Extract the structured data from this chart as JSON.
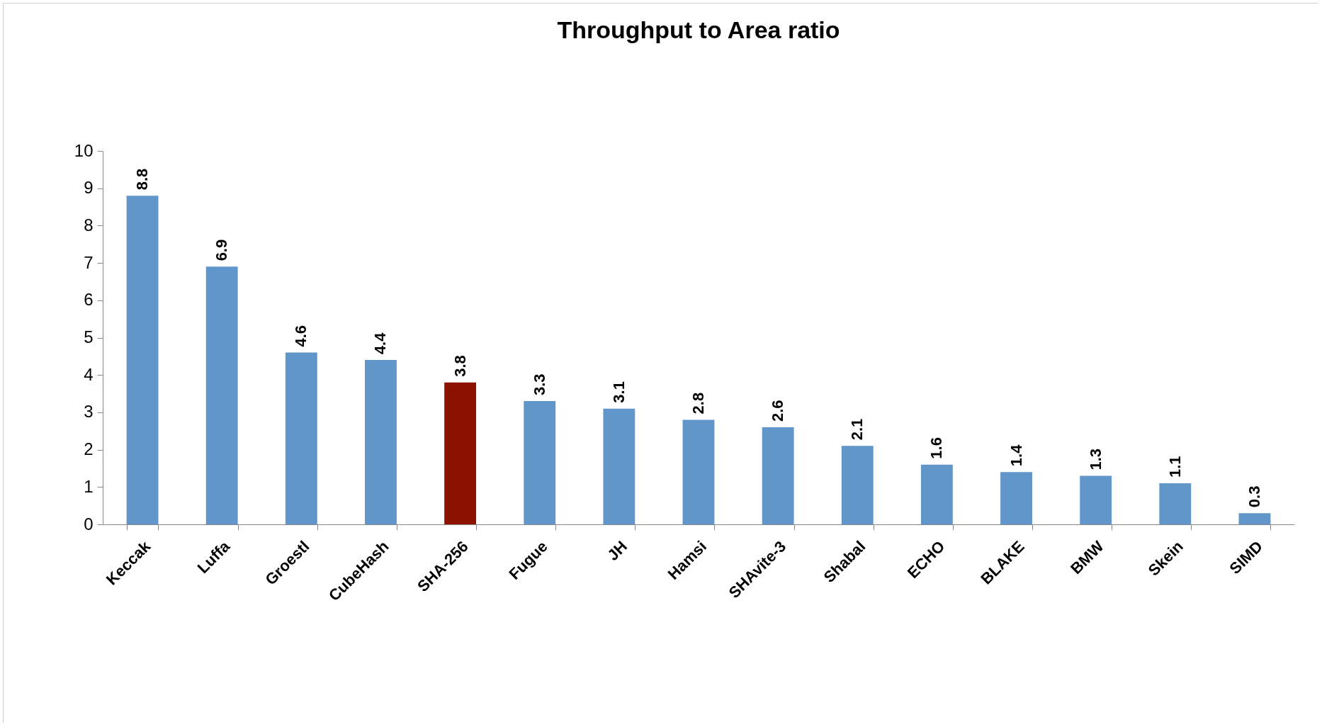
{
  "chart_data": {
    "type": "bar",
    "title": "Throughput to Area ratio",
    "categories": [
      "Keccak",
      "Luffa",
      "Groestl",
      "CubeHash",
      "SHA-256",
      "Fugue",
      "JH",
      "Hamsi",
      "SHAvite-3",
      "Shabal",
      "ECHO",
      "BLAKE",
      "BMW",
      "Skein",
      "SIMD"
    ],
    "values": [
      8.8,
      6.9,
      4.6,
      4.4,
      3.8,
      3.3,
      3.1,
      2.8,
      2.6,
      2.1,
      1.6,
      1.4,
      1.3,
      1.1,
      0.3
    ],
    "colors": [
      "#6096c9",
      "#6096c9",
      "#6096c9",
      "#6096c9",
      "#8d1300",
      "#6096c9",
      "#6096c9",
      "#6096c9",
      "#6096c9",
      "#6096c9",
      "#6096c9",
      "#6096c9",
      "#6096c9",
      "#6096c9",
      "#6096c9"
    ],
    "ylim": [
      0,
      10
    ],
    "yticks": [
      0,
      1,
      2,
      3,
      4,
      5,
      6,
      7,
      8,
      9,
      10
    ],
    "data_labels": true
  }
}
